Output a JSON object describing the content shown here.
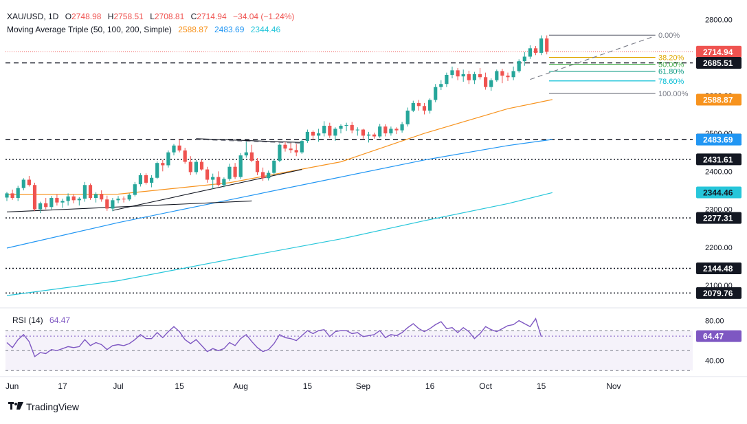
{
  "header": {
    "symbol": "XAU/USD, 1D",
    "o_label": "O",
    "o_value": "2748.98",
    "h_label": "H",
    "h_value": "2758.51",
    "l_label": "L",
    "l_value": "2708.81",
    "c_label": "C",
    "c_value": "2714.94",
    "change": "−34.04 (−1.24%)",
    "ma_title": "Moving Average Triple (50, 100, 200, Simple)",
    "ma50_value": "2588.87",
    "ma100_value": "2483.69",
    "ma200_value": "2344.46"
  },
  "rsi_header": {
    "title": "RSI (14)",
    "value": "64.47"
  },
  "branding": {
    "name": "TradingView"
  },
  "colors": {
    "up": "#26a69a",
    "down": "#ef5350",
    "ma50": "#f7931e",
    "ma100": "#2196f3",
    "ma200": "#26c6da",
    "rsi": "#7e57c2",
    "fib_gray": "#787b86",
    "fib_382": "#e0a800",
    "fib_50": "#4caf50",
    "fib_618": "#089981",
    "fib_786": "#00bcd4"
  },
  "chart_data": [
    {
      "type": "candlestick",
      "title": "XAU/USD, 1D",
      "y_range": [
        2055,
        2815
      ],
      "x_ticks": [
        "Jun",
        "17",
        "Jul",
        "15",
        "Aug",
        "15",
        "Sep",
        "16",
        "Oct",
        "15",
        "Nov"
      ],
      "y_ticks": [
        2100,
        2200,
        2300,
        2400,
        2500,
        2600,
        2700,
        2800
      ],
      "y_tick_labels": [
        "2100.00",
        "2200.00",
        "2300.00",
        "2400.00",
        "2500.00",
        "2600.00",
        "2700.00",
        "2800.00"
      ],
      "price_labels": [
        {
          "value": 2714.94,
          "text": "2714.94",
          "color": "#ef5350"
        },
        {
          "value": 2685.51,
          "text": "2685.51",
          "color": "#131722"
        },
        {
          "value": 2588.87,
          "text": "2588.87",
          "color": "#f7931e"
        },
        {
          "value": 2483.75,
          "text": "2483.75",
          "color": "#131722"
        },
        {
          "value": 2483.69,
          "text": "2483.69",
          "color": "#2196f3"
        },
        {
          "value": 2431.61,
          "text": "2431.61",
          "color": "#131722"
        },
        {
          "value": 2344.46,
          "text": "2344.46",
          "color": "#26c6da"
        },
        {
          "value": 2277.31,
          "text": "2277.31",
          "color": "#131722"
        },
        {
          "value": 2144.48,
          "text": "2144.48",
          "color": "#131722"
        },
        {
          "value": 2079.76,
          "text": "2079.76",
          "color": "#131722"
        }
      ],
      "horizontal_levels": [
        {
          "value": 2685.51,
          "style": "dashed"
        },
        {
          "value": 2483.75,
          "style": "dashed"
        },
        {
          "value": 2431.61,
          "style": "dotted"
        },
        {
          "value": 2277.31,
          "style": "dotted"
        },
        {
          "value": 2144.48,
          "style": "dotted"
        },
        {
          "value": 2079.76,
          "style": "dotted"
        }
      ],
      "fibonacci": [
        {
          "label": "0.00%",
          "value": 2758.5,
          "color": "#787b86"
        },
        {
          "label": "38.20%",
          "value": 2700.0,
          "color": "#e0a800"
        },
        {
          "label": "50.00%",
          "value": 2681.9,
          "color": "#4caf50"
        },
        {
          "label": "61.80%",
          "value": 2663.8,
          "color": "#089981"
        },
        {
          "label": "78.60%",
          "value": 2638.1,
          "color": "#00bcd4"
        },
        {
          "label": "100.00%",
          "value": 2605.3,
          "color": "#787b86"
        }
      ],
      "candles": [
        [
          2331,
          2346,
          2322,
          2342
        ],
        [
          2342,
          2352,
          2325,
          2330
        ],
        [
          2330,
          2362,
          2322,
          2356
        ],
        [
          2356,
          2382,
          2350,
          2378
        ],
        [
          2378,
          2388,
          2360,
          2364
        ],
        [
          2364,
          2370,
          2296,
          2300
        ],
        [
          2300,
          2320,
          2290,
          2316
        ],
        [
          2316,
          2330,
          2300,
          2306
        ],
        [
          2306,
          2335,
          2300,
          2330
        ],
        [
          2330,
          2340,
          2310,
          2318
        ],
        [
          2318,
          2328,
          2304,
          2322
        ],
        [
          2322,
          2342,
          2310,
          2334
        ],
        [
          2334,
          2340,
          2316,
          2324
        ],
        [
          2324,
          2332,
          2310,
          2328
        ],
        [
          2328,
          2372,
          2320,
          2364
        ],
        [
          2364,
          2368,
          2325,
          2330
        ],
        [
          2330,
          2345,
          2318,
          2340
        ],
        [
          2340,
          2350,
          2320,
          2326
        ],
        [
          2326,
          2336,
          2296,
          2302
        ],
        [
          2302,
          2330,
          2295,
          2324
        ],
        [
          2324,
          2335,
          2316,
          2328
        ],
        [
          2328,
          2334,
          2318,
          2326
        ],
        [
          2326,
          2342,
          2322,
          2338
        ],
        [
          2338,
          2372,
          2334,
          2366
        ],
        [
          2366,
          2395,
          2360,
          2390
        ],
        [
          2390,
          2395,
          2365,
          2370
        ],
        [
          2370,
          2390,
          2358,
          2383
        ],
        [
          2383,
          2426,
          2380,
          2422
        ],
        [
          2422,
          2430,
          2400,
          2416
        ],
        [
          2416,
          2455,
          2410,
          2450
        ],
        [
          2450,
          2472,
          2442,
          2468
        ],
        [
          2468,
          2484,
          2450,
          2455
        ],
        [
          2455,
          2462,
          2420,
          2425
        ],
        [
          2425,
          2440,
          2390,
          2398
        ],
        [
          2398,
          2430,
          2392,
          2425
        ],
        [
          2425,
          2430,
          2402,
          2405
        ],
        [
          2405,
          2412,
          2370,
          2378
        ],
        [
          2378,
          2394,
          2354,
          2385
        ],
        [
          2385,
          2400,
          2360,
          2364
        ],
        [
          2364,
          2384,
          2358,
          2380
        ],
        [
          2380,
          2420,
          2375,
          2412
        ],
        [
          2412,
          2422,
          2380,
          2385
        ],
        [
          2385,
          2448,
          2380,
          2442
        ],
        [
          2442,
          2478,
          2436,
          2450
        ],
        [
          2450,
          2470,
          2424,
          2428
        ],
        [
          2428,
          2435,
          2390,
          2398
        ],
        [
          2398,
          2410,
          2375,
          2382
        ],
        [
          2382,
          2402,
          2376,
          2396
        ],
        [
          2396,
          2432,
          2390,
          2428
        ],
        [
          2428,
          2474,
          2424,
          2470
        ],
        [
          2470,
          2477,
          2452,
          2460
        ],
        [
          2460,
          2474,
          2448,
          2456
        ],
        [
          2456,
          2472,
          2440,
          2450
        ],
        [
          2450,
          2484,
          2446,
          2480
        ],
        [
          2480,
          2510,
          2475,
          2504
        ],
        [
          2504,
          2508,
          2484,
          2494
        ],
        [
          2494,
          2512,
          2478,
          2500
        ],
        [
          2500,
          2532,
          2492,
          2520
        ],
        [
          2520,
          2528,
          2488,
          2494
        ],
        [
          2494,
          2516,
          2480,
          2512
        ],
        [
          2512,
          2524,
          2500,
          2520
        ],
        [
          2520,
          2528,
          2506,
          2522
        ],
        [
          2522,
          2530,
          2500,
          2508
        ],
        [
          2508,
          2516,
          2494,
          2510
        ],
        [
          2510,
          2512,
          2486,
          2494
        ],
        [
          2494,
          2504,
          2476,
          2497
        ],
        [
          2497,
          2502,
          2486,
          2492
        ],
        [
          2492,
          2525,
          2488,
          2518
        ],
        [
          2518,
          2524,
          2492,
          2500
        ],
        [
          2500,
          2518,
          2494,
          2512
        ],
        [
          2512,
          2516,
          2498,
          2508
        ],
        [
          2508,
          2530,
          2502,
          2524
        ],
        [
          2524,
          2568,
          2518,
          2560
        ],
        [
          2560,
          2586,
          2556,
          2580
        ],
        [
          2580,
          2588,
          2560,
          2572
        ],
        [
          2572,
          2580,
          2550,
          2560
        ],
        [
          2560,
          2592,
          2552,
          2588
        ],
        [
          2588,
          2630,
          2582,
          2622
        ],
        [
          2622,
          2640,
          2614,
          2630
        ],
        [
          2630,
          2660,
          2622,
          2654
        ],
        [
          2654,
          2676,
          2645,
          2666
        ],
        [
          2666,
          2672,
          2640,
          2650
        ],
        [
          2650,
          2668,
          2636,
          2656
        ],
        [
          2656,
          2665,
          2630,
          2640
        ],
        [
          2640,
          2662,
          2630,
          2656
        ],
        [
          2656,
          2672,
          2642,
          2648
        ],
        [
          2648,
          2660,
          2615,
          2622
        ],
        [
          2622,
          2645,
          2612,
          2640
        ],
        [
          2640,
          2668,
          2636,
          2664
        ],
        [
          2664,
          2670,
          2632,
          2652
        ],
        [
          2652,
          2660,
          2638,
          2648
        ],
        [
          2648,
          2676,
          2640,
          2664
        ],
        [
          2664,
          2695,
          2660,
          2690
        ],
        [
          2690,
          2714,
          2678,
          2702
        ],
        [
          2702,
          2732,
          2696,
          2724
        ],
        [
          2724,
          2730,
          2706,
          2712
        ],
        [
          2712,
          2758,
          2706,
          2750
        ],
        [
          2750,
          2758,
          2708,
          2715
        ]
      ],
      "ma50": [
        [
          0,
          2339
        ],
        [
          20,
          2340
        ],
        [
          40,
          2370
        ],
        [
          60,
          2425
        ],
        [
          75,
          2500
        ],
        [
          90,
          2565
        ],
        [
          98,
          2589
        ]
      ],
      "ma100": [
        [
          0,
          2198
        ],
        [
          20,
          2265
        ],
        [
          40,
          2325
        ],
        [
          60,
          2385
        ],
        [
          75,
          2430
        ],
        [
          90,
          2468
        ],
        [
          98,
          2484
        ]
      ],
      "ma200": [
        [
          0,
          2073
        ],
        [
          20,
          2112
        ],
        [
          40,
          2168
        ],
        [
          60,
          2222
        ],
        [
          75,
          2270
        ],
        [
          90,
          2315
        ],
        [
          98,
          2344
        ]
      ],
      "trendlines": [
        {
          "p1": [
            0,
            2293
          ],
          "p2": [
            44,
            2322
          ],
          "style": "solid"
        },
        {
          "p1": [
            19,
            2297
          ],
          "p2": [
            53,
            2405
          ],
          "style": "solid"
        },
        {
          "p1": [
            34,
            2486
          ],
          "p2": [
            53,
            2476
          ],
          "style": "solid"
        },
        {
          "p1": [
            34,
            2484
          ],
          "p2": [
            53,
            2474
          ],
          "style": "dashed"
        },
        {
          "p1": [
            94,
            2642
          ],
          "p2": [
            116,
            2754
          ],
          "style": "dashed"
        }
      ]
    },
    {
      "type": "line",
      "title": "RSI (14)",
      "y_range": [
        26,
        88
      ],
      "y_ticks": [
        40,
        80
      ],
      "y_tick_labels": [
        "40.00",
        "80.00"
      ],
      "levels": [
        70,
        50,
        30
      ],
      "last_value_label": "64.47",
      "rsi": [
        58,
        53,
        61,
        66,
        59,
        44,
        48,
        47,
        51,
        50,
        52,
        54,
        53,
        54,
        61,
        55,
        58,
        56,
        51,
        55,
        56,
        55,
        57,
        61,
        66,
        62,
        62,
        68,
        63,
        69,
        74,
        69,
        61,
        57,
        61,
        55,
        49,
        52,
        50,
        52,
        58,
        55,
        62,
        66,
        59,
        53,
        49,
        51,
        57,
        66,
        63,
        62,
        60,
        65,
        70,
        67,
        70,
        71,
        64,
        69,
        70,
        70,
        67,
        68,
        64,
        65,
        66,
        70,
        63,
        66,
        65,
        68,
        73,
        77,
        72,
        69,
        72,
        76,
        79,
        72,
        73,
        68,
        73,
        69,
        62,
        67,
        74,
        71,
        69,
        72,
        75,
        76,
        80,
        77,
        74,
        82,
        64
      ]
    }
  ]
}
